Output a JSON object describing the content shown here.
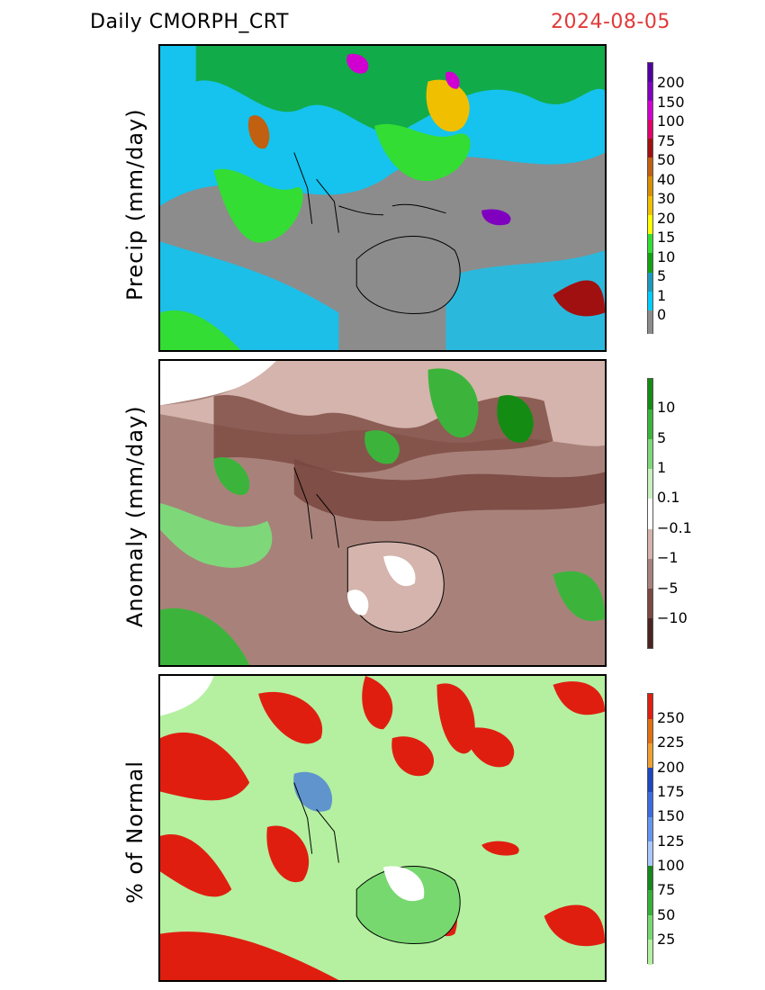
{
  "header": {
    "product": "Daily  CMORPH_CRT",
    "date": "2024-08-05"
  },
  "panels": [
    {
      "ylabel": "Precip (mm/day)",
      "colorbar": {
        "colors": [
          "#8c8c8c",
          "#00ccff",
          "#1a9bbd",
          "#12a312",
          "#33dd33",
          "#ffff00",
          "#f0c000",
          "#d89000",
          "#c06010",
          "#a01010",
          "#e0006a",
          "#d000d0",
          "#8000c0",
          "#5000a0"
        ],
        "labels": [
          "0",
          "1",
          "5",
          "10",
          "15",
          "20",
          "30",
          "40",
          "50",
          "75",
          "100",
          "150",
          "200"
        ]
      }
    },
    {
      "ylabel": "Anomaly (mm/day)",
      "colorbar": {
        "colors": [
          "#4a2420",
          "#7a4840",
          "#a8827a",
          "#d4b4ac",
          "#ffffff",
          "#c8f0c0",
          "#7ed87a",
          "#3cb43c",
          "#148c14"
        ],
        "labels": [
          "−10",
          "−5",
          "−1",
          "−0.1",
          "0.1",
          "1",
          "5",
          "10"
        ]
      }
    },
    {
      "ylabel": "% of Normal",
      "colorbar": {
        "colors": [
          "#b4f0a0",
          "#78d870",
          "#38b038",
          "#14881a",
          "#aac8ff",
          "#6496f0",
          "#3c6ce0",
          "#1e46c0",
          "#f0a030",
          "#e07010",
          "#e01e10"
        ],
        "labels": [
          "25",
          "50",
          "75",
          "100",
          "125",
          "150",
          "175",
          "200",
          "225",
          "250"
        ]
      }
    }
  ]
}
